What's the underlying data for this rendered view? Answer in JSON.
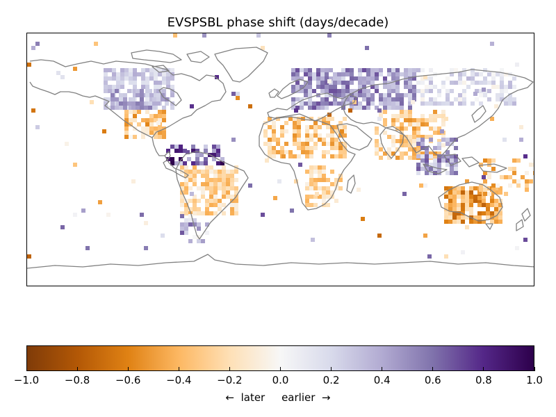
{
  "title": "EVSPSBL phase shift (days/decade)",
  "colorbar": {
    "ticks": [
      "−1.0",
      "−0.8",
      "−0.6",
      "−0.4",
      "−0.2",
      "0.0",
      "0.2",
      "0.4",
      "0.6",
      "0.8",
      "1.0"
    ],
    "range": [
      -1.0,
      1.0
    ],
    "label": "←  later     earlier  →",
    "colormap": "PuOr",
    "colors": [
      "#7f3b08",
      "#b35806",
      "#e08214",
      "#fdb863",
      "#fee0b6",
      "#f7f7f7",
      "#d8daeb",
      "#b2abd2",
      "#8073ac",
      "#542788",
      "#2d004b"
    ]
  },
  "map": {
    "projection": "plate carree",
    "coastline_color": "#808080"
  }
}
